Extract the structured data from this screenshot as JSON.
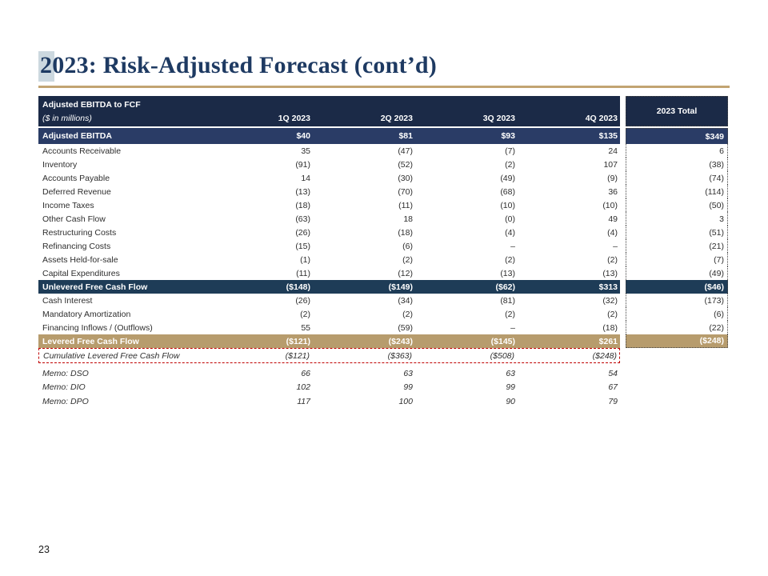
{
  "slide": {
    "title": "2023: Risk-Adjusted Forecast (cont’d)",
    "page_number": "23"
  },
  "colors": {
    "title_navy": "#1e3a62",
    "title_highlight": "#ccd8df",
    "gold_rule": "#c2a472",
    "header_navy": "#1b2a47",
    "subtotal_navy": "#2a3c66",
    "unlevered_navy": "#1e3c57",
    "levered_tan": "#b79c6d",
    "cumulative_border_red": "#c00000"
  },
  "table": {
    "header": {
      "title": "Adjusted EBITDA to FCF",
      "subtitle": "($ in millions)",
      "quarter_columns": [
        "1Q 2023",
        "2Q 2023",
        "3Q 2023",
        "4Q 2023"
      ],
      "total_column": "2023 Total"
    },
    "rows": [
      {
        "label": "Adjusted EBITDA",
        "values": [
          "$40",
          "$81",
          "$93",
          "$135"
        ],
        "total": "$349",
        "style": "ebitda"
      },
      {
        "label": "Accounts Receivable",
        "values": [
          "35",
          "(47)",
          "(7)",
          "24"
        ],
        "total": "6",
        "style": "body"
      },
      {
        "label": "Inventory",
        "values": [
          "(91)",
          "(52)",
          "(2)",
          "107"
        ],
        "total": "(38)",
        "style": "body"
      },
      {
        "label": "Accounts Payable",
        "values": [
          "14",
          "(30)",
          "(49)",
          "(9)"
        ],
        "total": "(74)",
        "style": "body"
      },
      {
        "label": "Deferred Revenue",
        "values": [
          "(13)",
          "(70)",
          "(68)",
          "36"
        ],
        "total": "(114)",
        "style": "body"
      },
      {
        "label": "Income Taxes",
        "values": [
          "(18)",
          "(11)",
          "(10)",
          "(10)"
        ],
        "total": "(50)",
        "style": "body"
      },
      {
        "label": "Other Cash Flow",
        "values": [
          "(63)",
          "18",
          "(0)",
          "49"
        ],
        "total": "3",
        "style": "body"
      },
      {
        "label": "Restructuring Costs",
        "values": [
          "(26)",
          "(18)",
          "(4)",
          "(4)"
        ],
        "total": "(51)",
        "style": "body"
      },
      {
        "label": "Refinancing Costs",
        "values": [
          "(15)",
          "(6)",
          "–",
          "–"
        ],
        "total": "(21)",
        "style": "body"
      },
      {
        "label": "Assets Held-for-sale",
        "values": [
          "(1)",
          "(2)",
          "(2)",
          "(2)"
        ],
        "total": "(7)",
        "style": "body"
      },
      {
        "label": "Capital Expenditures",
        "values": [
          "(11)",
          "(12)",
          "(13)",
          "(13)"
        ],
        "total": "(49)",
        "style": "body"
      },
      {
        "label": "Unlevered Free Cash Flow",
        "values": [
          "($148)",
          "($149)",
          "($62)",
          "$313"
        ],
        "total": "($46)",
        "style": "unlevered"
      },
      {
        "label": "Cash Interest",
        "values": [
          "(26)",
          "(34)",
          "(81)",
          "(32)"
        ],
        "total": "(173)",
        "style": "body"
      },
      {
        "label": "Mandatory Amortization",
        "values": [
          "(2)",
          "(2)",
          "(2)",
          "(2)"
        ],
        "total": "(6)",
        "style": "body"
      },
      {
        "label": "Financing Inflows / (Outflows)",
        "values": [
          "55",
          "(59)",
          "–",
          "(18)"
        ],
        "total": "(22)",
        "style": "body"
      },
      {
        "label": "Levered Free Cash Flow",
        "values": [
          "($121)",
          "($243)",
          "($145)",
          "$261"
        ],
        "total": "($248)",
        "style": "levered"
      },
      {
        "label": "Cumulative Levered Free Cash Flow",
        "values": [
          "($121)",
          "($363)",
          "($508)",
          "($248)"
        ],
        "total": null,
        "style": "cumulative"
      },
      {
        "label": "Memo: DSO",
        "values": [
          "66",
          "63",
          "63",
          "54"
        ],
        "total": null,
        "style": "memo"
      },
      {
        "label": "Memo: DIO",
        "values": [
          "102",
          "99",
          "99",
          "67"
        ],
        "total": null,
        "style": "memo"
      },
      {
        "label": "Memo: DPO",
        "values": [
          "117",
          "100",
          "90",
          "79"
        ],
        "total": null,
        "style": "memo"
      }
    ]
  }
}
